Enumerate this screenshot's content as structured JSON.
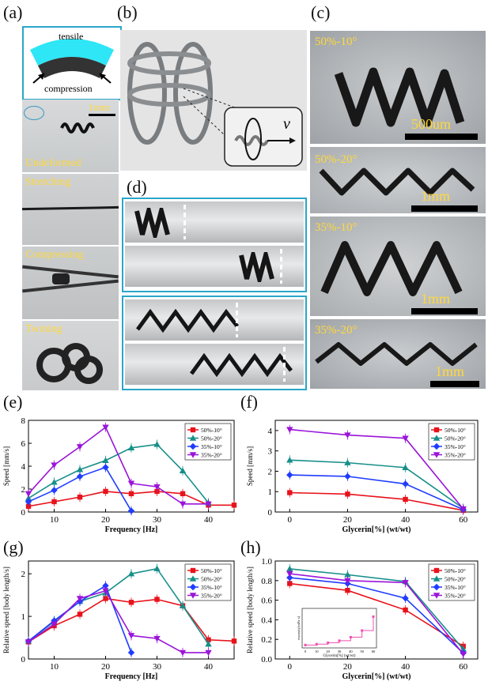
{
  "panels": {
    "a": {
      "label": "(a)",
      "tensile": "tensile",
      "compression": "compression",
      "scale": "1mm",
      "states": [
        "Undeformed",
        "Stretching",
        "Compressing",
        "Twining"
      ]
    },
    "b": {
      "label": "(b)",
      "v_symbol": "v"
    },
    "c": {
      "label": "(c)",
      "items": [
        {
          "name": "50%-10°",
          "scale": "500um"
        },
        {
          "name": "50%-20°",
          "scale": "1mm"
        },
        {
          "name": "35%-10°",
          "scale": "1mm"
        },
        {
          "name": "35%-20°",
          "scale": "1mm"
        }
      ]
    },
    "d": {
      "label": "(d)"
    },
    "e": {
      "label": "(e)"
    },
    "f": {
      "label": "(f)"
    },
    "g": {
      "label": "(g)"
    },
    "h": {
      "label": "(h)"
    }
  },
  "colors": {
    "s1": "#e8121b",
    "s2": "#178f8a",
    "s3": "#1f3cff",
    "s4": "#9a14d9",
    "accent_box": "#2aa6c9",
    "yellow": "#ffd83a"
  },
  "chart_data": [
    {
      "id": "e",
      "type": "line",
      "xlabel": "Frequency [Hz]",
      "ylabel": "Speed [mm/s]",
      "xlim": [
        5,
        45
      ],
      "ylim": [
        0,
        8
      ],
      "xticks": [
        10,
        20,
        30,
        40
      ],
      "yticks": [
        0,
        2,
        4,
        6,
        8
      ],
      "legend_position": "top-right",
      "series": [
        {
          "name": "50%-10°",
          "color": "#e8121b",
          "marker": "square",
          "x": [
            5,
            10,
            15,
            20,
            25,
            30,
            35,
            40,
            45
          ],
          "y": [
            0.5,
            0.9,
            1.3,
            1.8,
            1.6,
            1.8,
            1.6,
            0.6,
            0.6
          ]
        },
        {
          "name": "50%-20°",
          "color": "#178f8a",
          "marker": "triangle",
          "x": [
            5,
            10,
            15,
            20,
            25,
            30,
            35,
            40
          ],
          "y": [
            1.2,
            2.6,
            3.7,
            4.5,
            5.6,
            5.9,
            3.6,
            0.8
          ]
        },
        {
          "name": "35%-10°",
          "color": "#1f3cff",
          "marker": "diamond",
          "x": [
            5,
            10,
            15,
            20,
            25
          ],
          "y": [
            0.9,
            1.9,
            3.1,
            3.9,
            0.1
          ]
        },
        {
          "name": "35%-20°",
          "color": "#9a14d9",
          "marker": "triangle-down",
          "x": [
            5,
            10,
            15,
            20,
            25,
            30,
            35,
            40
          ],
          "y": [
            1.6,
            4.1,
            5.7,
            7.4,
            2.5,
            2.2,
            0.7,
            0.7
          ]
        }
      ]
    },
    {
      "id": "f",
      "type": "line",
      "xlabel": "Glycerin[%] (wt/wt)",
      "ylabel": "Speed [mm/s]",
      "xlim": [
        -5,
        65
      ],
      "ylim": [
        0,
        4.5
      ],
      "xticks": [
        0,
        20,
        40,
        60
      ],
      "yticks": [
        0,
        1,
        2,
        3,
        4
      ],
      "legend_position": "top-right",
      "series": [
        {
          "name": "50%-10°",
          "color": "#e8121b",
          "marker": "square",
          "x": [
            0,
            20,
            40,
            60
          ],
          "y": [
            0.95,
            0.88,
            0.62,
            0.08
          ]
        },
        {
          "name": "50%-20°",
          "color": "#178f8a",
          "marker": "triangle",
          "x": [
            0,
            20,
            40,
            60
          ],
          "y": [
            2.55,
            2.42,
            2.18,
            0.18
          ]
        },
        {
          "name": "35%-10°",
          "color": "#1f3cff",
          "marker": "diamond",
          "x": [
            0,
            20,
            40,
            60
          ],
          "y": [
            1.82,
            1.75,
            1.38,
            0.12
          ]
        },
        {
          "name": "35%-20°",
          "color": "#9a14d9",
          "marker": "triangle-down",
          "x": [
            0,
            20,
            40,
            60
          ],
          "y": [
            4.05,
            3.78,
            3.62,
            0.15
          ]
        }
      ]
    },
    {
      "id": "g",
      "type": "line",
      "xlabel": "Frequency [Hz]",
      "ylabel": "Relative speed [body length/s]",
      "xlim": [
        5,
        45
      ],
      "ylim": [
        0,
        2.3
      ],
      "xticks": [
        10,
        20,
        30,
        40
      ],
      "yticks": [
        0,
        1,
        2
      ],
      "legend_position": "top-right",
      "series": [
        {
          "name": "50%-10°",
          "color": "#e8121b",
          "marker": "square",
          "x": [
            5,
            10,
            15,
            20,
            25,
            30,
            35,
            40,
            45
          ],
          "y": [
            0.4,
            0.78,
            1.05,
            1.42,
            1.33,
            1.4,
            1.25,
            0.45,
            0.42
          ]
        },
        {
          "name": "50%-20°",
          "color": "#178f8a",
          "marker": "triangle",
          "x": [
            5,
            10,
            15,
            20,
            25,
            30,
            35,
            40
          ],
          "y": [
            0.42,
            0.88,
            1.35,
            1.55,
            2.0,
            2.12,
            1.25,
            0.35
          ]
        },
        {
          "name": "35%-10°",
          "color": "#1f3cff",
          "marker": "diamond",
          "x": [
            5,
            10,
            15,
            20,
            25
          ],
          "y": [
            0.42,
            0.9,
            1.35,
            1.72,
            0.15
          ]
        },
        {
          "name": "35%-20°",
          "color": "#9a14d9",
          "marker": "triangle-down",
          "x": [
            5,
            10,
            15,
            20,
            25,
            30,
            35,
            40
          ],
          "y": [
            0.4,
            0.82,
            1.42,
            1.6,
            0.55,
            0.48,
            0.15,
            0.15
          ]
        }
      ]
    },
    {
      "id": "h",
      "type": "line",
      "xlabel": "Glycerin[%] (wt/wt)",
      "ylabel": "Relative speed [body length/s]",
      "xlim": [
        -5,
        65
      ],
      "ylim": [
        0,
        1.0
      ],
      "xticks": [
        0,
        20,
        40,
        60
      ],
      "yticks": [
        0.0,
        0.2,
        0.4,
        0.6,
        0.8,
        1.0
      ],
      "legend_position": "top-right",
      "series": [
        {
          "name": "50%-10°",
          "color": "#e8121b",
          "marker": "square",
          "x": [
            0,
            20,
            40,
            60
          ],
          "y": [
            0.77,
            0.7,
            0.5,
            0.13
          ]
        },
        {
          "name": "50%-20°",
          "color": "#178f8a",
          "marker": "triangle",
          "x": [
            0,
            20,
            40,
            60
          ],
          "y": [
            0.92,
            0.86,
            0.79,
            0.1
          ]
        },
        {
          "name": "35%-10°",
          "color": "#1f3cff",
          "marker": "diamond",
          "x": [
            0,
            20,
            40,
            60
          ],
          "y": [
            0.83,
            0.77,
            0.62,
            0.06
          ]
        },
        {
          "name": "35%-20°",
          "color": "#9a14d9",
          "marker": "triangle-down",
          "x": [
            0,
            20,
            40,
            60
          ],
          "y": [
            0.87,
            0.8,
            0.78,
            0.05
          ]
        }
      ],
      "inset": {
        "xlabel": "Glycerin[%] (wt/wt)",
        "ylabel": "viscosity[mPa·s]",
        "xticks": [
          0,
          10,
          20,
          30,
          40,
          50,
          60
        ],
        "x": [
          0,
          10,
          20,
          30,
          40,
          50,
          60
        ],
        "y": [
          1.0,
          1.3,
          1.8,
          2.5,
          3.7,
          6.0,
          10.8
        ]
      }
    }
  ]
}
